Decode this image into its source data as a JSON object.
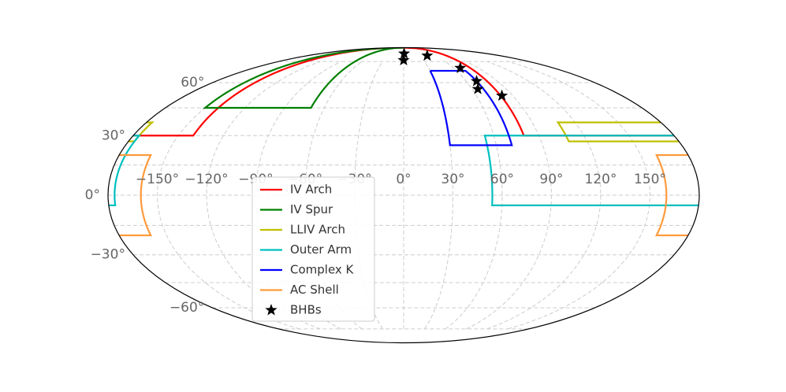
{
  "chart_data": {
    "type": "mollweide",
    "grid": true,
    "xticks": [
      {
        "value": -150,
        "label": "−150°"
      },
      {
        "value": -120,
        "label": "−120°"
      },
      {
        "value": -90,
        "label": "−90°"
      },
      {
        "value": -60,
        "label": "−60°"
      },
      {
        "value": -30,
        "label": "−30°"
      },
      {
        "value": 0,
        "label": "0°"
      },
      {
        "value": 30,
        "label": "30°"
      },
      {
        "value": 60,
        "label": "60°"
      },
      {
        "value": 90,
        "label": "90°"
      },
      {
        "value": 120,
        "label": "120°"
      },
      {
        "value": 150,
        "label": "150°"
      }
    ],
    "yticks": [
      {
        "value": -60,
        "label": "−60°"
      },
      {
        "value": -30,
        "label": "−30°"
      },
      {
        "value": 0,
        "label": "0°"
      },
      {
        "value": 30,
        "label": "30°"
      },
      {
        "value": 60,
        "label": "60°"
      }
    ],
    "ygrid": [
      -75,
      -60,
      -45,
      -30,
      -15,
      0,
      15,
      30,
      45,
      60,
      75
    ],
    "series": [
      {
        "name": "IV Arch",
        "color": "#ff0000",
        "lon": [
          80,
          80,
          180,
          null,
          -180,
          -140,
          -140
        ],
        "lat": [
          90,
          30,
          30,
          null,
          30,
          30,
          90
        ]
      },
      {
        "name": "IV Spur",
        "color": "#008000",
        "lon": [
          -150,
          -150,
          -70,
          -70
        ],
        "lat": [
          90,
          45,
          45,
          90
        ]
      },
      {
        "name": "LLIV Arch",
        "color": "#bfbf00",
        "lon": [
          180,
          108,
          108,
          180,
          null,
          -180,
          -176,
          -176,
          -180
        ],
        "lat": [
          37,
          37,
          27,
          27,
          null,
          37,
          37,
          27,
          27
        ]
      },
      {
        "name": "Outer Arm",
        "color": "#00bfbf",
        "lon": [
          180,
          54,
          54,
          180,
          null,
          -180,
          -176,
          -176,
          -180
        ],
        "lat": [
          30,
          30,
          -5,
          -5,
          null,
          30,
          30,
          -5,
          -5
        ]
      },
      {
        "name": "Complex K",
        "color": "#0000ff",
        "lon": [
          30,
          70,
          70,
          30,
          30
        ],
        "lat": [
          68,
          68,
          25,
          25,
          68
        ]
      },
      {
        "name": "AC Shell",
        "color": "#ff9a3c",
        "lon": [
          180,
          160,
          160,
          180,
          null,
          -180,
          -160,
          -160,
          -180
        ],
        "lat": [
          20,
          20,
          -20,
          -20,
          null,
          20,
          20,
          -20,
          -20
        ]
      },
      {
        "name": "BHBs",
        "color": "#000000",
        "marker": "star",
        "lon": [
          1,
          0,
          44,
          68,
          70,
          65,
          81
        ],
        "lat": [
          82,
          76,
          80,
          70,
          61,
          56,
          52
        ]
      }
    ]
  }
}
